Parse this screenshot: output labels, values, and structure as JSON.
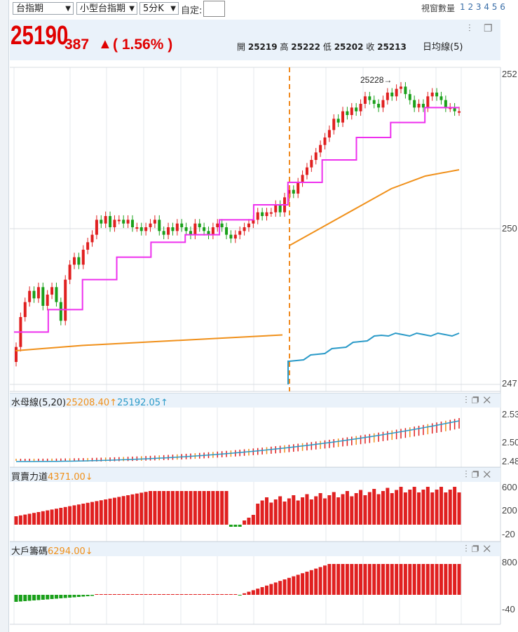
{
  "toolbar": {
    "market_select": "台指期",
    "product_select": "小型台指期",
    "period_select": "5分K",
    "custom_label": "自定:",
    "window_count_label": "視窗數量",
    "window_counts": "1 2 3 4 5 6"
  },
  "quote": {
    "price": "25190",
    "change": "387",
    "arrow": "▲",
    "pct": "( 1.56% )",
    "open_label": "開",
    "open": "25219",
    "high_label": "高",
    "high": "25222",
    "low_label": "低",
    "low": "25202",
    "close_label": "收",
    "close": "25213",
    "ma_label": "日均線(5)"
  },
  "colors": {
    "up": "#e02020",
    "down": "#1aa01a",
    "ma_magenta": "#ee30ee",
    "ma_orange": "#f0901a",
    "cyan": "#2a9ac8",
    "price_red": "#e00000",
    "header_bg": "#eaf2fa"
  },
  "indicators": {
    "water": {
      "name": "水母線(5,20)",
      "v1": "25208.40↑",
      "v2": "25192.05↑"
    },
    "buysell": {
      "name": "買賣力道",
      "v1": "4371.00↓"
    },
    "chips": {
      "name": "大戶籌碼",
      "v1": "6294.00↓"
    }
  },
  "icons": [
    "settings-sliders-icon",
    "popout-icon",
    "close-icon"
  ],
  "chart_data": {
    "type": "candlestick",
    "main": {
      "y_ticks": [
        "252",
        "250",
        "247"
      ],
      "annotation": "25228→",
      "closes": [
        24880,
        24920,
        24940,
        24955,
        24945,
        24960,
        24935,
        24950,
        24960,
        24940,
        24915,
        24970,
        24990,
        25000,
        24990,
        25010,
        25020,
        25030,
        25050,
        25045,
        25055,
        25040,
        25050,
        25050,
        25045,
        25050,
        25040,
        25040,
        25035,
        25040,
        25045,
        25050,
        25035,
        25030,
        25040,
        25035,
        25045,
        25040,
        25035,
        25030,
        25045,
        25040,
        25035,
        25030,
        25040,
        25045,
        25040,
        25030,
        25025,
        25030,
        25035,
        25040,
        25045,
        25050,
        25060,
        25055,
        25060,
        25060,
        25070,
        25060,
        25080,
        25090,
        25085,
        25100,
        25110,
        25120,
        25130,
        25140,
        25150,
        25160,
        25170,
        25185,
        25180,
        25195,
        25190,
        25200,
        25195,
        25205,
        25215,
        25210,
        25205,
        25200,
        25210,
        25220,
        25215,
        25225,
        25228,
        25218,
        25210,
        25200,
        25205,
        25200,
        25215,
        25220,
        25215,
        25210,
        25200,
        25200,
        25195,
        25195
      ],
      "ma_step": [
        24900,
        24930,
        24970,
        25000,
        25020,
        25030,
        25050,
        25070,
        25100,
        25130,
        25160,
        25180,
        25200
      ],
      "ma_orange": [
        24975,
        24990,
        25000,
        25010,
        25020
      ],
      "ma_orange_2": [
        25050,
        25080,
        25110,
        25140,
        25160,
        25170
      ]
    },
    "water": {
      "y_ticks": [
        "2.53",
        "2.50",
        "2.48"
      ]
    },
    "buysell": {
      "y_ticks": [
        "600",
        "200",
        "-20"
      ]
    },
    "chips": {
      "y_ticks": [
        "800",
        "-40"
      ]
    }
  }
}
